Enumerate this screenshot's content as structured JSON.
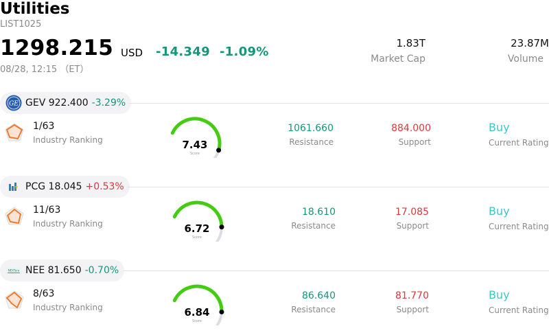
{
  "header": {
    "title": "Utilities",
    "code": "LIST1025",
    "price": "1298.215",
    "currency": "USD",
    "change": "-14.349",
    "change_pct": "-1.09%",
    "timestamp": "08/28, 12:15 （ET）",
    "market_cap_value": "1.83T",
    "market_cap_label": "Market Cap",
    "volume_value": "23.87M",
    "volume_label": "Volume"
  },
  "colors": {
    "down": "#13967b",
    "up": "#e0353b",
    "rating": "#3ec6c7",
    "gauge_fill": "#44cc11",
    "gauge_track": "#dcdde3"
  },
  "stocks": [
    {
      "ticker": "GEV",
      "price": "922.400",
      "change_pct": "-3.29%",
      "direction": "down",
      "logo_icon": "ge-logo-icon",
      "rank": "1/63",
      "rank_label": "Industry Ranking",
      "score": "7.43",
      "score_value": 7.43,
      "score_label": "Score",
      "resistance": "1061.660",
      "resistance_label": "Resistance",
      "support": "884.000",
      "support_label": "Support",
      "rating": "Buy",
      "rating_label": "Current Rating"
    },
    {
      "ticker": "PCG",
      "price": "18.045",
      "change_pct": "+0.53%",
      "direction": "up",
      "logo_icon": "pge-logo-icon",
      "rank": "11/63",
      "rank_label": "Industry Ranking",
      "score": "6.72",
      "score_value": 6.72,
      "score_label": "Score",
      "resistance": "18.610",
      "resistance_label": "Resistance",
      "support": "17.085",
      "support_label": "Support",
      "rating": "Buy",
      "rating_label": "Current Rating"
    },
    {
      "ticker": "NEE",
      "price": "81.650",
      "change_pct": "-0.70%",
      "direction": "down",
      "logo_icon": "nextera-logo-icon",
      "rank": "8/63",
      "rank_label": "Industry Ranking",
      "score": "6.84",
      "score_value": 6.84,
      "score_label": "Score",
      "resistance": "86.640",
      "resistance_label": "Resistance",
      "support": "81.770",
      "support_label": "Support",
      "rating": "Buy",
      "rating_label": "Current Rating"
    }
  ]
}
